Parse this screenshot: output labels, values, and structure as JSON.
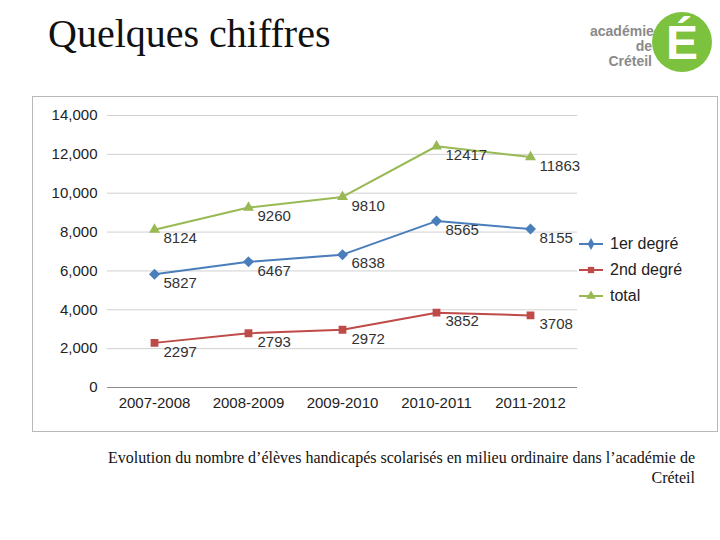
{
  "chart_data": {
    "type": "line",
    "title": "Quelques chiffres",
    "caption": "Evolution du nombre d’élèves handicapés scolarisés en milieu ordinaire dans l’académie de Créteil",
    "logo_text": [
      "académie",
      "de Créteil"
    ],
    "logo_letter": "É",
    "categories": [
      "2007-2008",
      "2008-2009",
      "2009-2010",
      "2010-2011",
      "2011-2012"
    ],
    "series": [
      {
        "name": "1er degré",
        "color": "#4a7ebb",
        "marker": "diamond",
        "values": [
          5827,
          6467,
          6838,
          8565,
          8155
        ]
      },
      {
        "name": "2nd degré",
        "color": "#be4b48",
        "marker": "square",
        "values": [
          2297,
          2793,
          2972,
          3852,
          3708
        ]
      },
      {
        "name": "total",
        "color": "#98b954",
        "marker": "triangle",
        "values": [
          8124,
          9260,
          9810,
          12417,
          11863
        ]
      }
    ],
    "ylim": [
      0,
      14000
    ],
    "yticks": [
      0,
      2000,
      4000,
      6000,
      8000,
      10000,
      12000,
      14000
    ],
    "grid": true,
    "legend": "right",
    "data_labels": true
  }
}
